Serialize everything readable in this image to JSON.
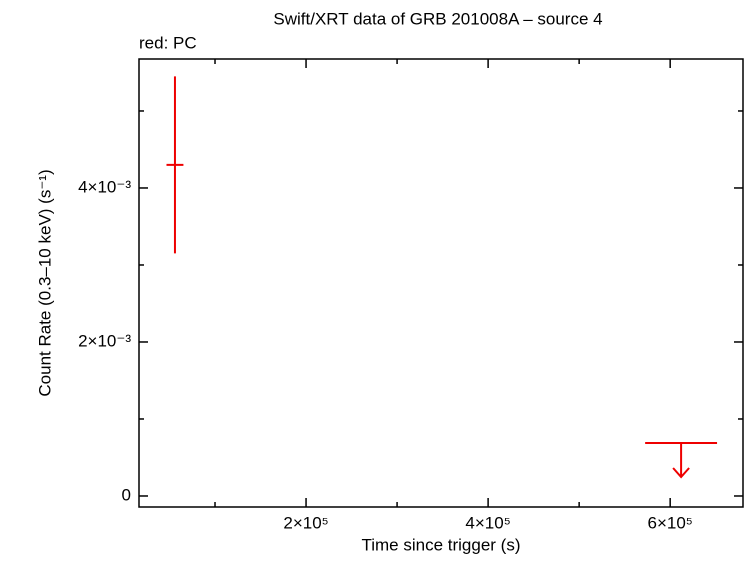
{
  "chart_data": {
    "type": "scatter",
    "title": "Swift/XRT data of GRB 201008A – source 4",
    "annotation": "red: PC",
    "x_label": "Time since trigger (s)",
    "y_label": "Count Rate (0.3–10 keV) (s⁻¹)",
    "xlim": [
      16500,
      680000
    ],
    "ylim": [
      -0.000143,
      0.005675
    ],
    "xticks": [
      {
        "value": 200000,
        "label": "2×10⁵"
      },
      {
        "value": 400000,
        "label": "4×10⁵"
      },
      {
        "value": 600000,
        "label": "6×10⁵"
      }
    ],
    "xminorticks": [
      100000,
      300000,
      500000
    ],
    "yticks": [
      0,
      {
        "value": 0.002,
        "label": "2×10⁻³"
      },
      {
        "value": 0.004,
        "label": "4×10⁻³"
      }
    ],
    "yminorticks": [
      0.001,
      0.003,
      0.005
    ],
    "color": "#ee0000",
    "points": {
      "x": [
        56000
      ],
      "xerr": [
        9300
      ],
      "values": [
        0.0043
      ],
      "yerr": [
        0.00115
      ]
    },
    "upper_limits": {
      "x": [
        612000
      ],
      "xerr": [
        39500
      ],
      "values": [
        0.000688
      ]
    }
  }
}
